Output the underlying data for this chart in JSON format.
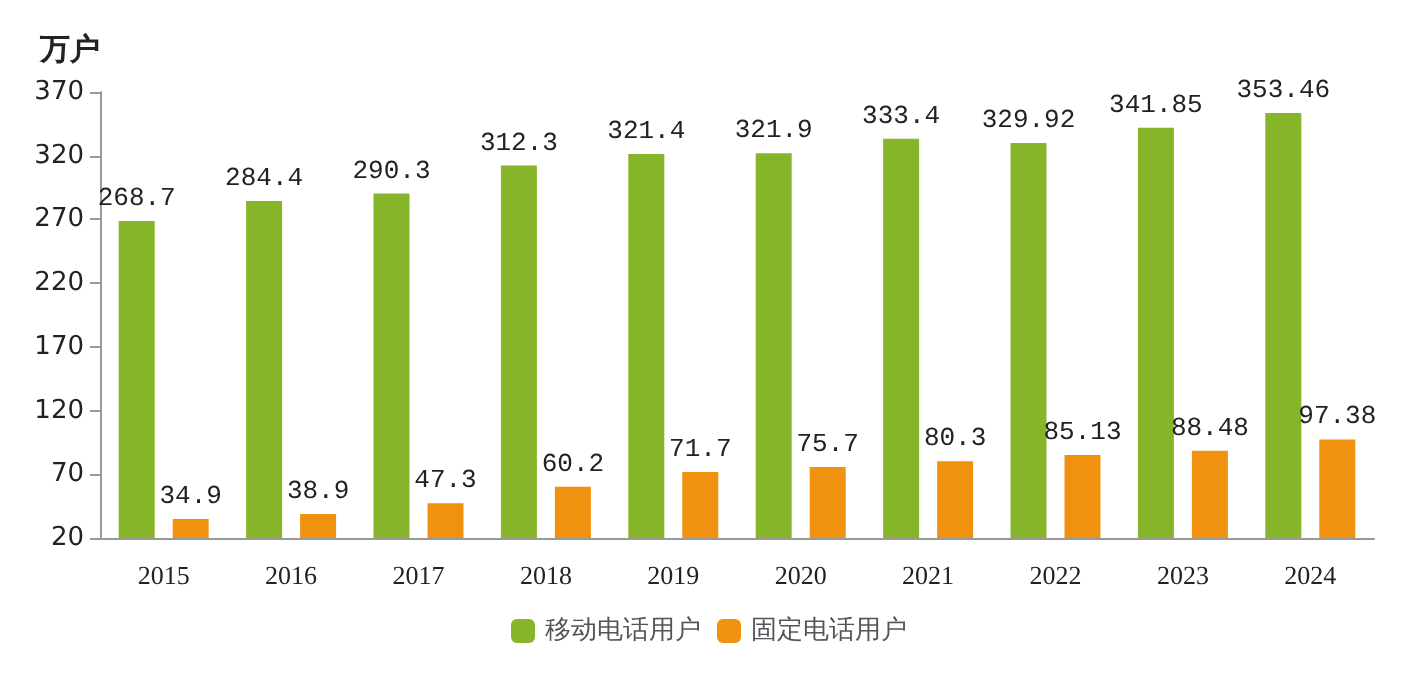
{
  "chart_data": {
    "type": "bar",
    "ylabel": "万户",
    "categories": [
      "2015",
      "2016",
      "2017",
      "2018",
      "2019",
      "2020",
      "2021",
      "2022",
      "2023",
      "2024"
    ],
    "series": [
      {
        "name": "移动电话用户",
        "color": "#86b52a",
        "values": [
          268.7,
          284.4,
          290.3,
          312.3,
          321.4,
          321.9,
          333.4,
          329.92,
          341.85,
          353.46
        ]
      },
      {
        "name": "固定电话用户",
        "color": "#f0920f",
        "values": [
          34.9,
          38.9,
          47.3,
          60.2,
          71.7,
          75.7,
          80.3,
          85.13,
          88.48,
          97.38
        ]
      }
    ],
    "ylim": [
      20,
      370
    ],
    "yticks": [
      20,
      70,
      120,
      170,
      220,
      270,
      320,
      370
    ],
    "grid": false,
    "legend": "bottom",
    "data_labels": true
  }
}
